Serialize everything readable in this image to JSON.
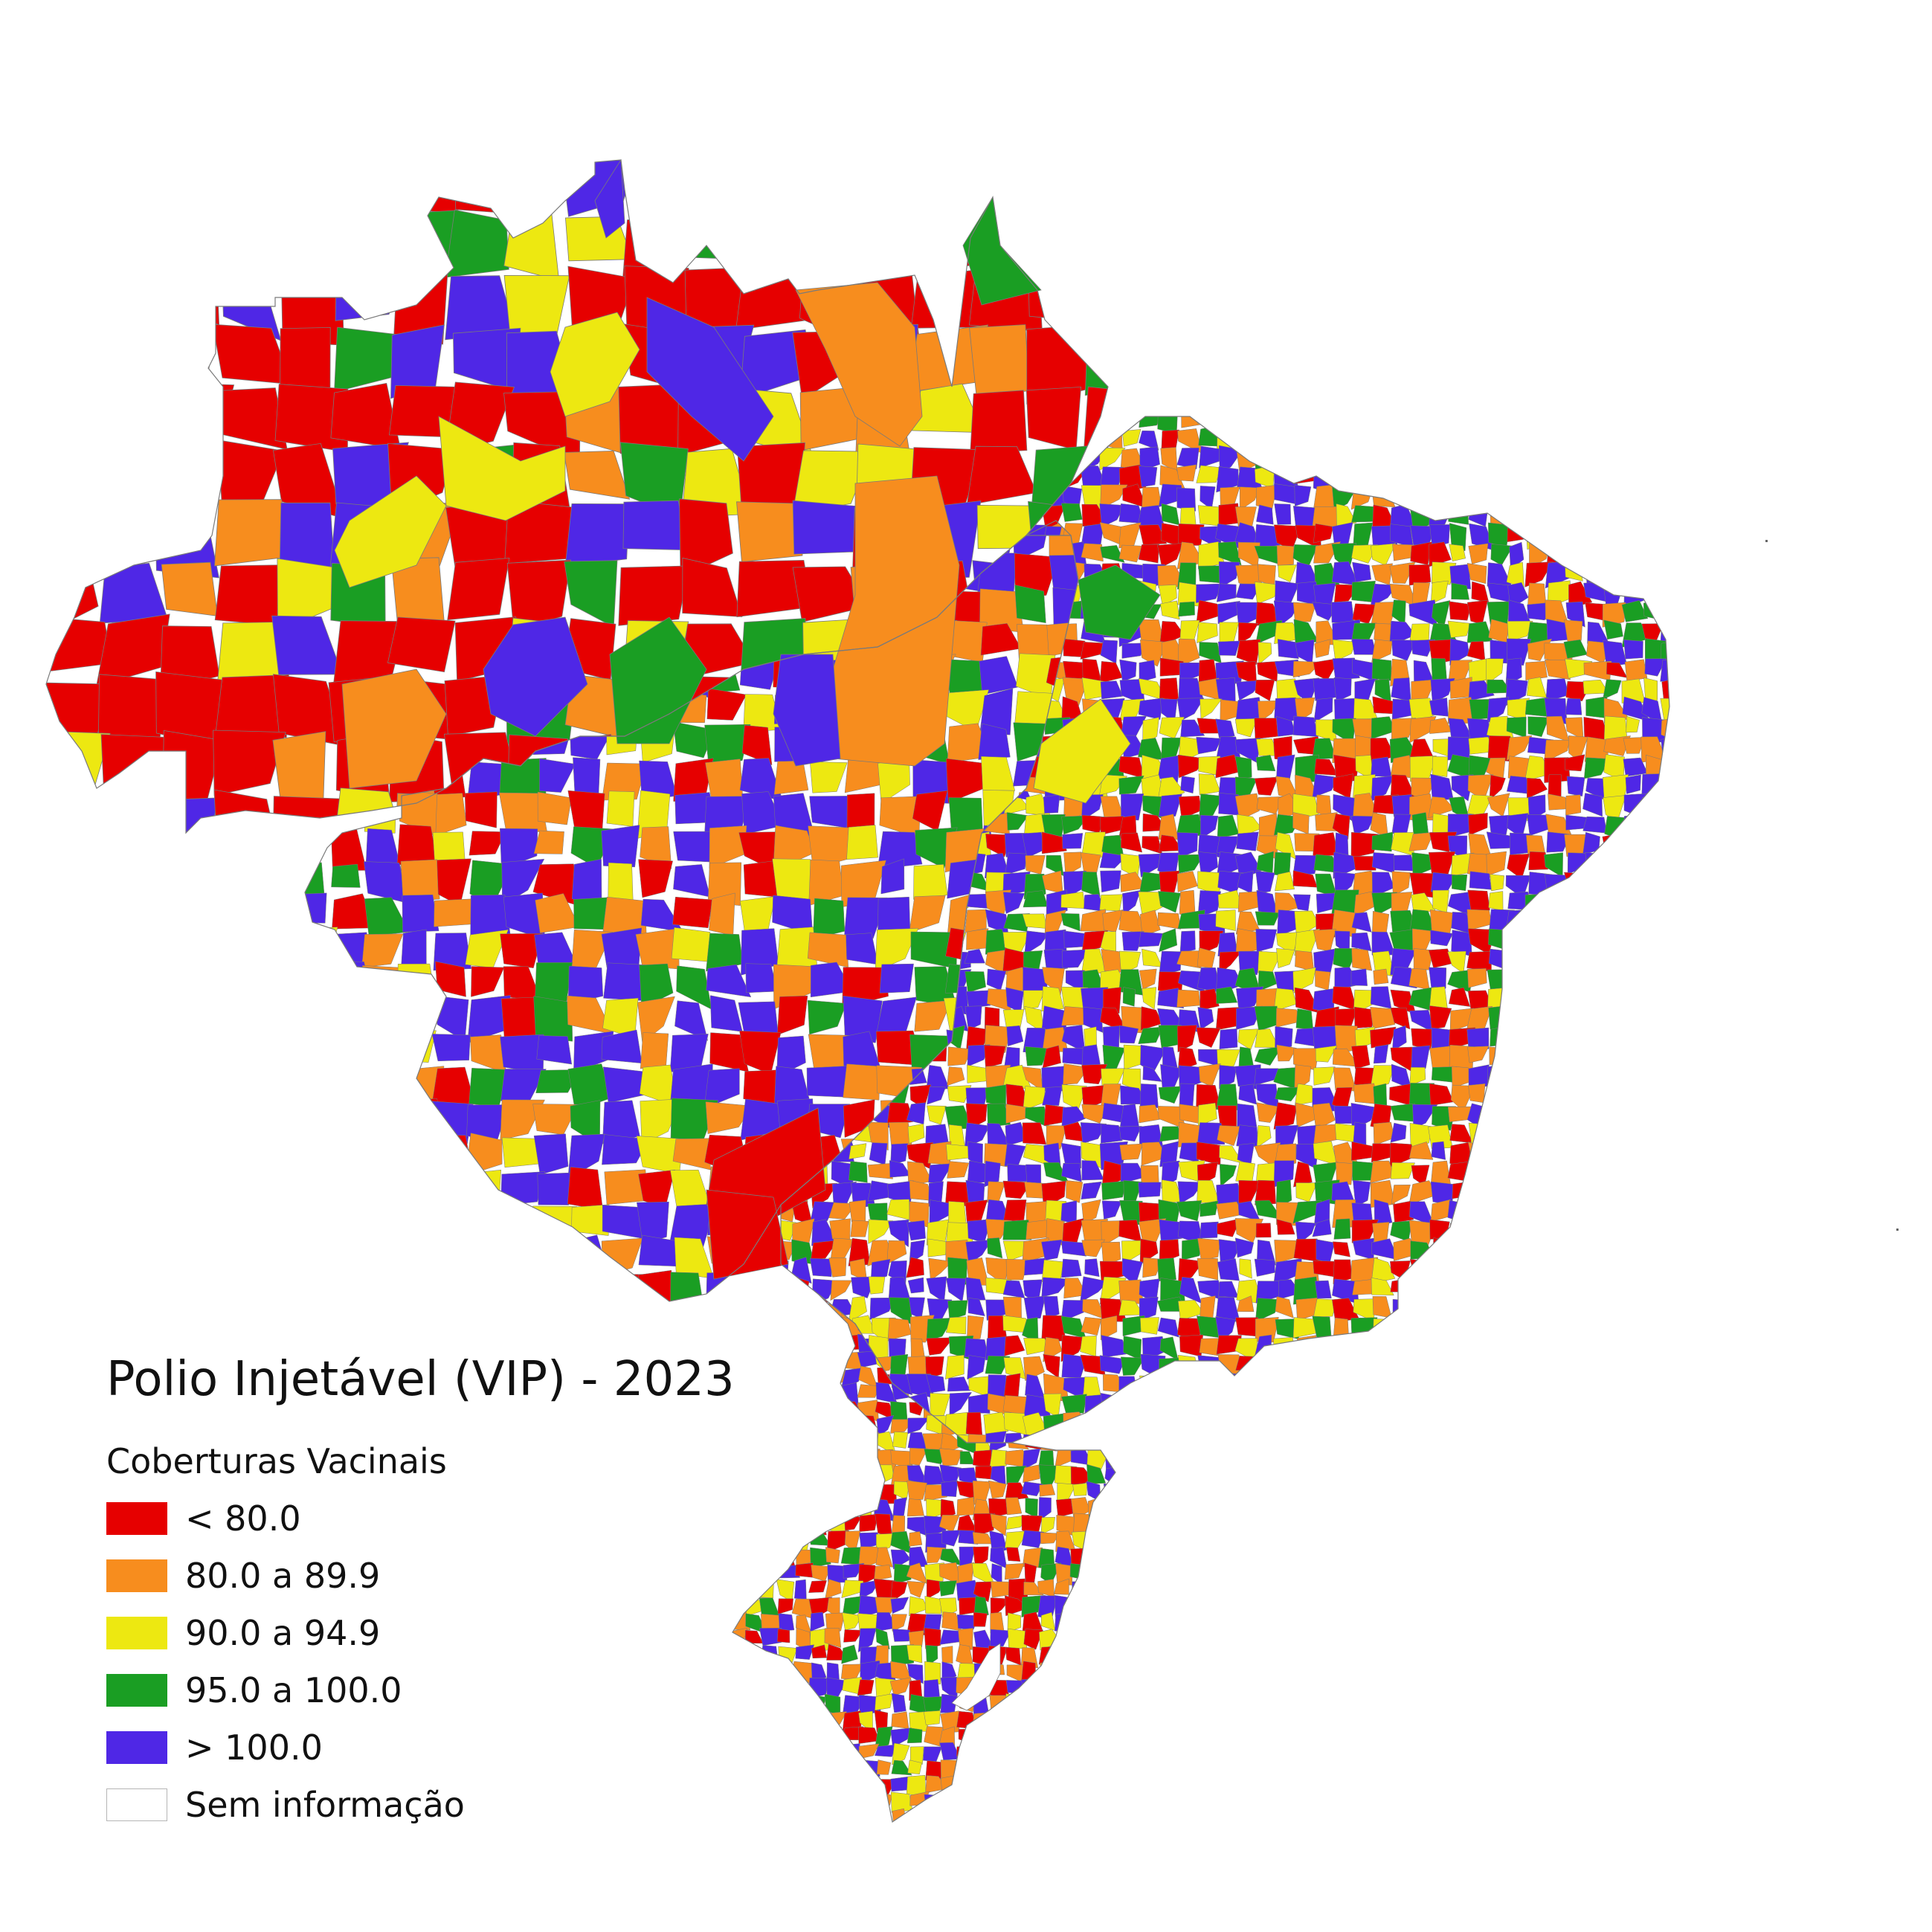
{
  "title": "Polio Injetável (VIP) - 2023",
  "legend": {
    "title": "Coberturas Vacinais",
    "items": [
      {
        "label": "< 80.0",
        "color": "#e60000"
      },
      {
        "label": "80.0 a 89.9",
        "color": "#f78d1e"
      },
      {
        "label": "90.0 a 94.9",
        "color": "#ede811"
      },
      {
        "label": "95.0 a 100.0",
        "color": "#1a9e23"
      },
      {
        "label": "> 100.0",
        "color": "#4f27e6"
      },
      {
        "label": "Sem informação",
        "color": "#ffffff"
      }
    ]
  },
  "colors": {
    "border": "#7a7a7a",
    "background": "#ffffff"
  }
}
